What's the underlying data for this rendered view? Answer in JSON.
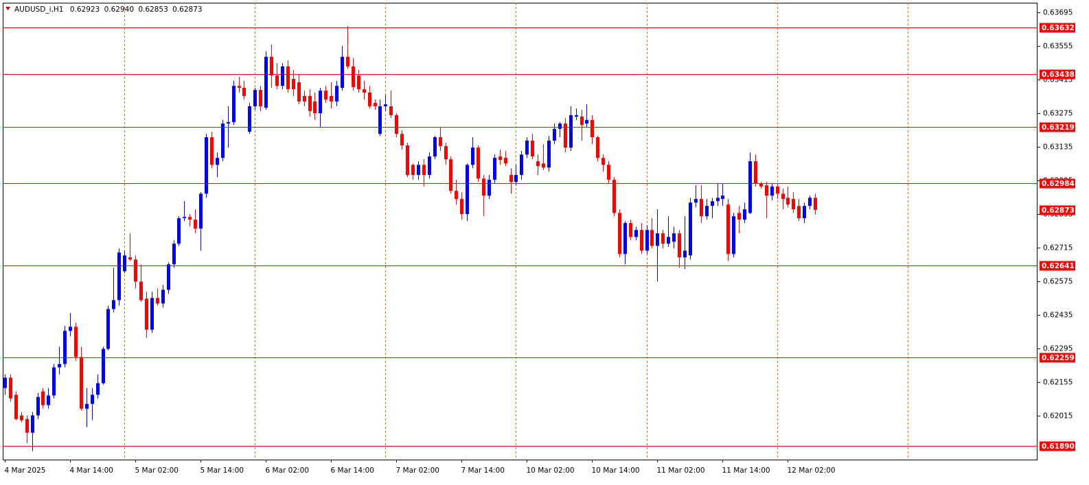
{
  "chart_data": {
    "type": "candlestick",
    "title": "AUDUSD_i,H1",
    "header_values": [
      "0.62923",
      "0.62940",
      "0.62853",
      "0.62873"
    ],
    "up_color": "#0000ff",
    "down_color": "#ff0000",
    "level_color": "#ff0000",
    "separator_color": "#ff6a00",
    "ylim": [
      0.61833,
      0.63735
    ],
    "yticks": [
      0.63695,
      0.63555,
      0.63415,
      0.63275,
      0.63135,
      0.62995,
      0.62855,
      0.62715,
      0.62575,
      0.62435,
      0.62295,
      0.62155,
      0.62015
    ],
    "levels": [
      0.63632,
      0.63438,
      0.63219,
      0.62984,
      0.62641,
      0.62259,
      {
        "value": 0.6189,
        "label": "0.61890"
      }
    ],
    "bid": 0.62873,
    "categories": [
      "4 Mar 2025",
      null,
      null,
      null,
      null,
      null,
      null,
      null,
      null,
      null,
      null,
      null,
      "4 Mar 14:00",
      null,
      null,
      null,
      null,
      null,
      null,
      null,
      null,
      null,
      null,
      null,
      "5 Mar 02:00",
      null,
      null,
      null,
      null,
      null,
      null,
      null,
      null,
      null,
      null,
      null,
      "5 Mar 14:00",
      null,
      null,
      null,
      null,
      null,
      null,
      null,
      null,
      null,
      null,
      null,
      "6 Mar 02:00",
      null,
      null,
      null,
      null,
      null,
      null,
      null,
      null,
      null,
      null,
      null,
      "6 Mar 14:00",
      null,
      null,
      null,
      null,
      null,
      null,
      null,
      null,
      null,
      null,
      null,
      "7 Mar 02:00",
      null,
      null,
      null,
      null,
      null,
      null,
      null,
      null,
      null,
      null,
      null,
      "7 Mar 14:00",
      null,
      null,
      null,
      null,
      null,
      null,
      null,
      null,
      null,
      null,
      null,
      "10 Mar 02:00",
      null,
      null,
      null,
      null,
      null,
      null,
      null,
      null,
      null,
      null,
      null,
      "10 Mar 14:00",
      null,
      null,
      null,
      null,
      null,
      null,
      null,
      null,
      null,
      null,
      null,
      "11 Mar 02:00",
      null,
      null,
      null,
      null,
      null,
      null,
      null,
      null,
      null,
      null,
      null,
      "11 Mar 14:00",
      null,
      null,
      null,
      null,
      null,
      null,
      null,
      null,
      null,
      null,
      null,
      "12 Mar 02:00",
      null,
      null,
      null,
      null,
      null
    ],
    "candles": [
      [
        0.62131,
        0.62188,
        0.62103,
        0.62174
      ],
      [
        0.62174,
        0.62188,
        0.62074,
        0.62088
      ],
      [
        0.62103,
        0.62117,
        0.61997,
        0.62002
      ],
      [
        0.62017,
        0.62031,
        0.61988,
        0.61997
      ],
      [
        0.62002,
        0.62017,
        0.61902,
        0.61945
      ],
      [
        0.61945,
        0.62031,
        0.61868,
        0.62017
      ],
      [
        0.62017,
        0.62111,
        0.62002,
        0.62094
      ],
      [
        0.62117,
        0.62131,
        0.62045,
        0.6206
      ],
      [
        0.6206,
        0.62131,
        0.62045,
        0.621
      ],
      [
        0.621,
        0.62231,
        0.62088,
        0.62217
      ],
      [
        0.62217,
        0.62303,
        0.62188,
        0.62231
      ],
      [
        0.62231,
        0.62389,
        0.62217,
        0.62369
      ],
      [
        0.62369,
        0.62443,
        0.62346,
        0.62386
      ],
      [
        0.62386,
        0.62403,
        0.62245,
        0.6226
      ],
      [
        0.6226,
        0.62303,
        0.62037,
        0.62045
      ],
      [
        0.62045,
        0.62131,
        0.61968,
        0.62065
      ],
      [
        0.62065,
        0.62131,
        0.61997,
        0.62103
      ],
      [
        0.62103,
        0.62188,
        0.62088,
        0.62151
      ],
      [
        0.62151,
        0.62303,
        0.62145,
        0.62294
      ],
      [
        0.62294,
        0.62474,
        0.62288,
        0.6246
      ],
      [
        0.6246,
        0.62632,
        0.62446,
        0.62497
      ],
      [
        0.62497,
        0.62712,
        0.62474,
        0.62695
      ],
      [
        0.62617,
        0.62703,
        0.62609,
        0.62683
      ],
      [
        0.62675,
        0.62775,
        0.6266,
        0.62666
      ],
      [
        0.62666,
        0.62683,
        0.62546,
        0.62574
      ],
      [
        0.62574,
        0.62646,
        0.62489,
        0.62497
      ],
      [
        0.62503,
        0.62532,
        0.6234,
        0.62374
      ],
      [
        0.62374,
        0.62532,
        0.6236,
        0.62506
      ],
      [
        0.62506,
        0.62546,
        0.62474,
        0.62483
      ],
      [
        0.62483,
        0.6256,
        0.62466,
        0.6254
      ],
      [
        0.6254,
        0.62654,
        0.62523,
        0.62646
      ],
      [
        0.62646,
        0.62746,
        0.62632,
        0.62732
      ],
      [
        0.62732,
        0.62846,
        0.62723,
        0.62838
      ],
      [
        0.62838,
        0.62909,
        0.62826,
        0.62843
      ],
      [
        0.62843,
        0.62855,
        0.62803,
        0.62832
      ],
      [
        0.62832,
        0.62875,
        0.62775,
        0.62795
      ],
      [
        0.62795,
        0.62946,
        0.62703,
        0.6294
      ],
      [
        0.6294,
        0.63189,
        0.62923,
        0.63175
      ],
      [
        0.63175,
        0.63198,
        0.63046,
        0.6306
      ],
      [
        0.6306,
        0.63112,
        0.63009,
        0.63089
      ],
      [
        0.63089,
        0.63247,
        0.63075,
        0.63232
      ],
      [
        0.63232,
        0.63304,
        0.63132,
        0.63238
      ],
      [
        0.63238,
        0.6341,
        0.63226,
        0.63389
      ],
      [
        0.63389,
        0.63427,
        0.63361,
        0.63381
      ],
      [
        0.63381,
        0.6341,
        0.63332,
        0.63347
      ],
      [
        0.63198,
        0.63318,
        0.63189,
        0.63304
      ],
      [
        0.63304,
        0.63381,
        0.63289,
        0.63372
      ],
      [
        0.63372,
        0.63389,
        0.63284,
        0.63304
      ],
      [
        0.63298,
        0.63533,
        0.63289,
        0.6351
      ],
      [
        0.6351,
        0.63561,
        0.63381,
        0.63432
      ],
      [
        0.63432,
        0.63484,
        0.63375,
        0.63389
      ],
      [
        0.63389,
        0.63484,
        0.63375,
        0.6347
      ],
      [
        0.6347,
        0.63495,
        0.63361,
        0.63375
      ],
      [
        0.63418,
        0.63455,
        0.63347,
        0.63375
      ],
      [
        0.63404,
        0.63438,
        0.63312,
        0.63324
      ],
      [
        0.63347,
        0.63369,
        0.63304,
        0.63324
      ],
      [
        0.63347,
        0.63375,
        0.63261,
        0.63284
      ],
      [
        0.63324,
        0.63361,
        0.63247,
        0.63275
      ],
      [
        0.63275,
        0.63381,
        0.63218,
        0.63369
      ],
      [
        0.63369,
        0.63389,
        0.63318,
        0.63332
      ],
      [
        0.63347,
        0.63404,
        0.63295,
        0.63324
      ],
      [
        0.63324,
        0.6341,
        0.63304,
        0.63389
      ],
      [
        0.63381,
        0.63555,
        0.63369,
        0.6351
      ],
      [
        0.6351,
        0.63638,
        0.63461,
        0.6347
      ],
      [
        0.6347,
        0.63504,
        0.63369,
        0.63384
      ],
      [
        0.63432,
        0.63455,
        0.63361,
        0.63375
      ],
      [
        0.63375,
        0.6341,
        0.63332,
        0.63361
      ],
      [
        0.63361,
        0.63389,
        0.63295,
        0.63304
      ],
      [
        0.63318,
        0.63332,
        0.63289,
        0.63304
      ],
      [
        0.63189,
        0.63332,
        0.63181,
        0.63304
      ],
      [
        0.63304,
        0.63352,
        0.63284,
        0.63312
      ],
      [
        0.63304,
        0.63369,
        0.63255,
        0.63267
      ],
      [
        0.63267,
        0.63275,
        0.63175,
        0.63189
      ],
      [
        0.63189,
        0.63204,
        0.63124,
        0.63141
      ],
      [
        0.63141,
        0.63152,
        0.63009,
        0.63018
      ],
      [
        0.6306,
        0.63066,
        0.62998,
        0.63018
      ],
      [
        0.63018,
        0.63075,
        0.62998,
        0.6306
      ],
      [
        0.6306,
        0.63083,
        0.6297,
        0.63018
      ],
      [
        0.63018,
        0.63112,
        0.63003,
        0.63095
      ],
      [
        0.63095,
        0.63181,
        0.63083,
        0.63175
      ],
      [
        0.63175,
        0.63218,
        0.63118,
        0.63138
      ],
      [
        0.63138,
        0.63152,
        0.6306,
        0.63083
      ],
      [
        0.63083,
        0.63095,
        0.6294,
        0.62952
      ],
      [
        0.62952,
        0.62998,
        0.62895,
        0.62918
      ],
      [
        0.62918,
        0.62946,
        0.62832,
        0.62855
      ],
      [
        0.62855,
        0.63066,
        0.62826,
        0.6306
      ],
      [
        0.6306,
        0.63175,
        0.63046,
        0.63132
      ],
      [
        0.63132,
        0.63141,
        0.62989,
        0.63003
      ],
      [
        0.63003,
        0.63018,
        0.62846,
        0.62932
      ],
      [
        0.62932,
        0.63018,
        0.62918,
        0.62998
      ],
      [
        0.62998,
        0.63103,
        0.62981,
        0.63089
      ],
      [
        0.63095,
        0.63124,
        0.6306,
        0.63081
      ],
      [
        0.63089,
        0.63118,
        0.63055,
        0.63066
      ],
      [
        0.63018,
        0.63046,
        0.6294,
        0.62989
      ],
      [
        0.62989,
        0.6306,
        0.62975,
        0.63018
      ],
      [
        0.63018,
        0.63118,
        0.62998,
        0.63103
      ],
      [
        0.63103,
        0.63175,
        0.63089,
        0.63161
      ],
      [
        0.63161,
        0.63189,
        0.63083,
        0.63095
      ],
      [
        0.63075,
        0.63103,
        0.63018,
        0.63055
      ],
      [
        0.63066,
        0.63146,
        0.63038,
        0.63049
      ],
      [
        0.63049,
        0.63181,
        0.63032,
        0.63161
      ],
      [
        0.63161,
        0.63232,
        0.63146,
        0.6321
      ],
      [
        0.6321,
        0.63238,
        0.63175,
        0.63232
      ],
      [
        0.63232,
        0.63255,
        0.63112,
        0.63132
      ],
      [
        0.63132,
        0.63304,
        0.63118,
        0.63267
      ],
      [
        0.63261,
        0.63295,
        0.63247,
        0.63267
      ],
      [
        0.63261,
        0.63289,
        0.63161,
        0.63226
      ],
      [
        0.63232,
        0.63312,
        0.63218,
        0.63247
      ],
      [
        0.63247,
        0.63267,
        0.63146,
        0.63175
      ],
      [
        0.63175,
        0.63181,
        0.63075,
        0.63089
      ],
      [
        0.63089,
        0.63103,
        0.63032,
        0.6306
      ],
      [
        0.6306,
        0.63075,
        0.62981,
        0.62998
      ],
      [
        0.62998,
        0.63009,
        0.62846,
        0.6286
      ],
      [
        0.6286,
        0.62875,
        0.62675,
        0.62689
      ],
      [
        0.62689,
        0.62826,
        0.62646,
        0.62818
      ],
      [
        0.62818,
        0.62832,
        0.62746,
        0.6276
      ],
      [
        0.6276,
        0.62803,
        0.62746,
        0.62789
      ],
      [
        0.62789,
        0.62818,
        0.62689,
        0.62703
      ],
      [
        0.62703,
        0.62809,
        0.62689,
        0.62789
      ],
      [
        0.62789,
        0.62838,
        0.62712,
        0.62723
      ],
      [
        0.62723,
        0.62875,
        0.62574,
        0.62775
      ],
      [
        0.62775,
        0.62789,
        0.62712,
        0.62732
      ],
      [
        0.62732,
        0.62846,
        0.62718,
        0.6276
      ],
      [
        0.6274,
        0.62803,
        0.62712,
        0.62775
      ],
      [
        0.62775,
        0.62789,
        0.62632,
        0.62675
      ],
      [
        0.62675,
        0.62846,
        0.62626,
        0.62703
      ],
      [
        0.62683,
        0.62923,
        0.62666,
        0.62903
      ],
      [
        0.62903,
        0.62975,
        0.62883,
        0.62918
      ],
      [
        0.62918,
        0.62975,
        0.62818,
        0.62846
      ],
      [
        0.62846,
        0.62918,
        0.62832,
        0.62889
      ],
      [
        0.62889,
        0.62923,
        0.62838,
        0.62909
      ],
      [
        0.62909,
        0.62981,
        0.62889,
        0.62923
      ],
      [
        0.62918,
        0.62981,
        0.62889,
        0.62932
      ],
      [
        0.62895,
        0.62918,
        0.6266,
        0.62689
      ],
      [
        0.62689,
        0.6286,
        0.62675,
        0.62846
      ],
      [
        0.6286,
        0.62889,
        0.62775,
        0.62832
      ],
      [
        0.62832,
        0.62903,
        0.62818,
        0.62875
      ],
      [
        0.6286,
        0.63112,
        0.62855,
        0.63075
      ],
      [
        0.63075,
        0.63103,
        0.6297,
        0.62981
      ],
      [
        0.62981,
        0.62989,
        0.62961,
        0.6297
      ],
      [
        0.62975,
        0.62989,
        0.62838,
        0.62932
      ],
      [
        0.62932,
        0.62981,
        0.62912,
        0.6297
      ],
      [
        0.6297,
        0.62981,
        0.62918,
        0.6294
      ],
      [
        0.6294,
        0.62961,
        0.62875,
        0.62918
      ],
      [
        0.62923,
        0.6297,
        0.62883,
        0.62895
      ],
      [
        0.62918,
        0.62946,
        0.6286,
        0.62875
      ],
      [
        0.62889,
        0.62918,
        0.62826,
        0.62838
      ],
      [
        0.62838,
        0.62903,
        0.62818,
        0.62889
      ],
      [
        0.62889,
        0.62932,
        0.62875,
        0.62923
      ],
      [
        0.62923,
        0.6294,
        0.62853,
        0.62873
      ]
    ]
  }
}
